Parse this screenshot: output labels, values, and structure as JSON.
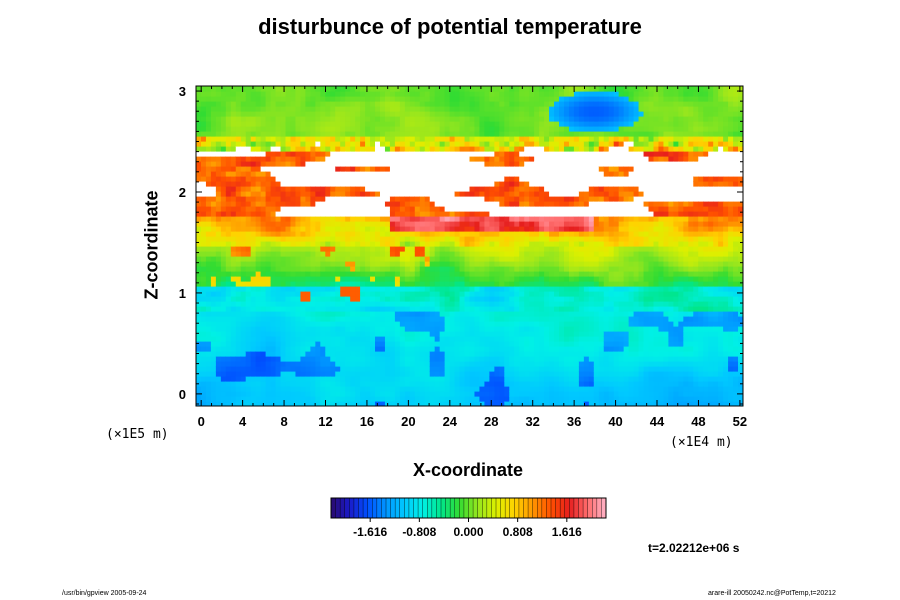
{
  "chart_data": {
    "type": "heatmap",
    "title": "disturbunce of potential temperature",
    "xlabel": "X-coordinate",
    "ylabel": "Z-coordinate",
    "x_multiplier": "(×1E4 m)",
    "y_multiplier": "(×1E5 m)",
    "x_ticks": [
      "0",
      "4",
      "8",
      "12",
      "16",
      "20",
      "24",
      "28",
      "32",
      "36",
      "40",
      "44",
      "48",
      "52"
    ],
    "y_ticks": [
      "0",
      "1",
      "2",
      "3"
    ],
    "xlim": [
      -0.5,
      52.3
    ],
    "ylim": [
      -0.12,
      3.05
    ],
    "colorbar": {
      "ticks": [
        "-1.616",
        "-0.808",
        "0.000",
        "0.808",
        "1.616"
      ],
      "range": [
        -2.26,
        2.26
      ],
      "colors": [
        "#2a0a6e",
        "#1a1ac8",
        "#0050ff",
        "#0096ff",
        "#00c8ff",
        "#00f0e6",
        "#00e68c",
        "#32dc32",
        "#96e61e",
        "#dcf000",
        "#ffd200",
        "#ff9600",
        "#ff5000",
        "#e61e1e",
        "#ff6e6e",
        "#ffb4c8"
      ]
    },
    "annotation": "t=2.02212e+06 s",
    "footer_left": "/usr/bin/gpview 2005-09-24",
    "footer_right": "arare-ill 20050242.nc@PotTemp,t=20212"
  }
}
